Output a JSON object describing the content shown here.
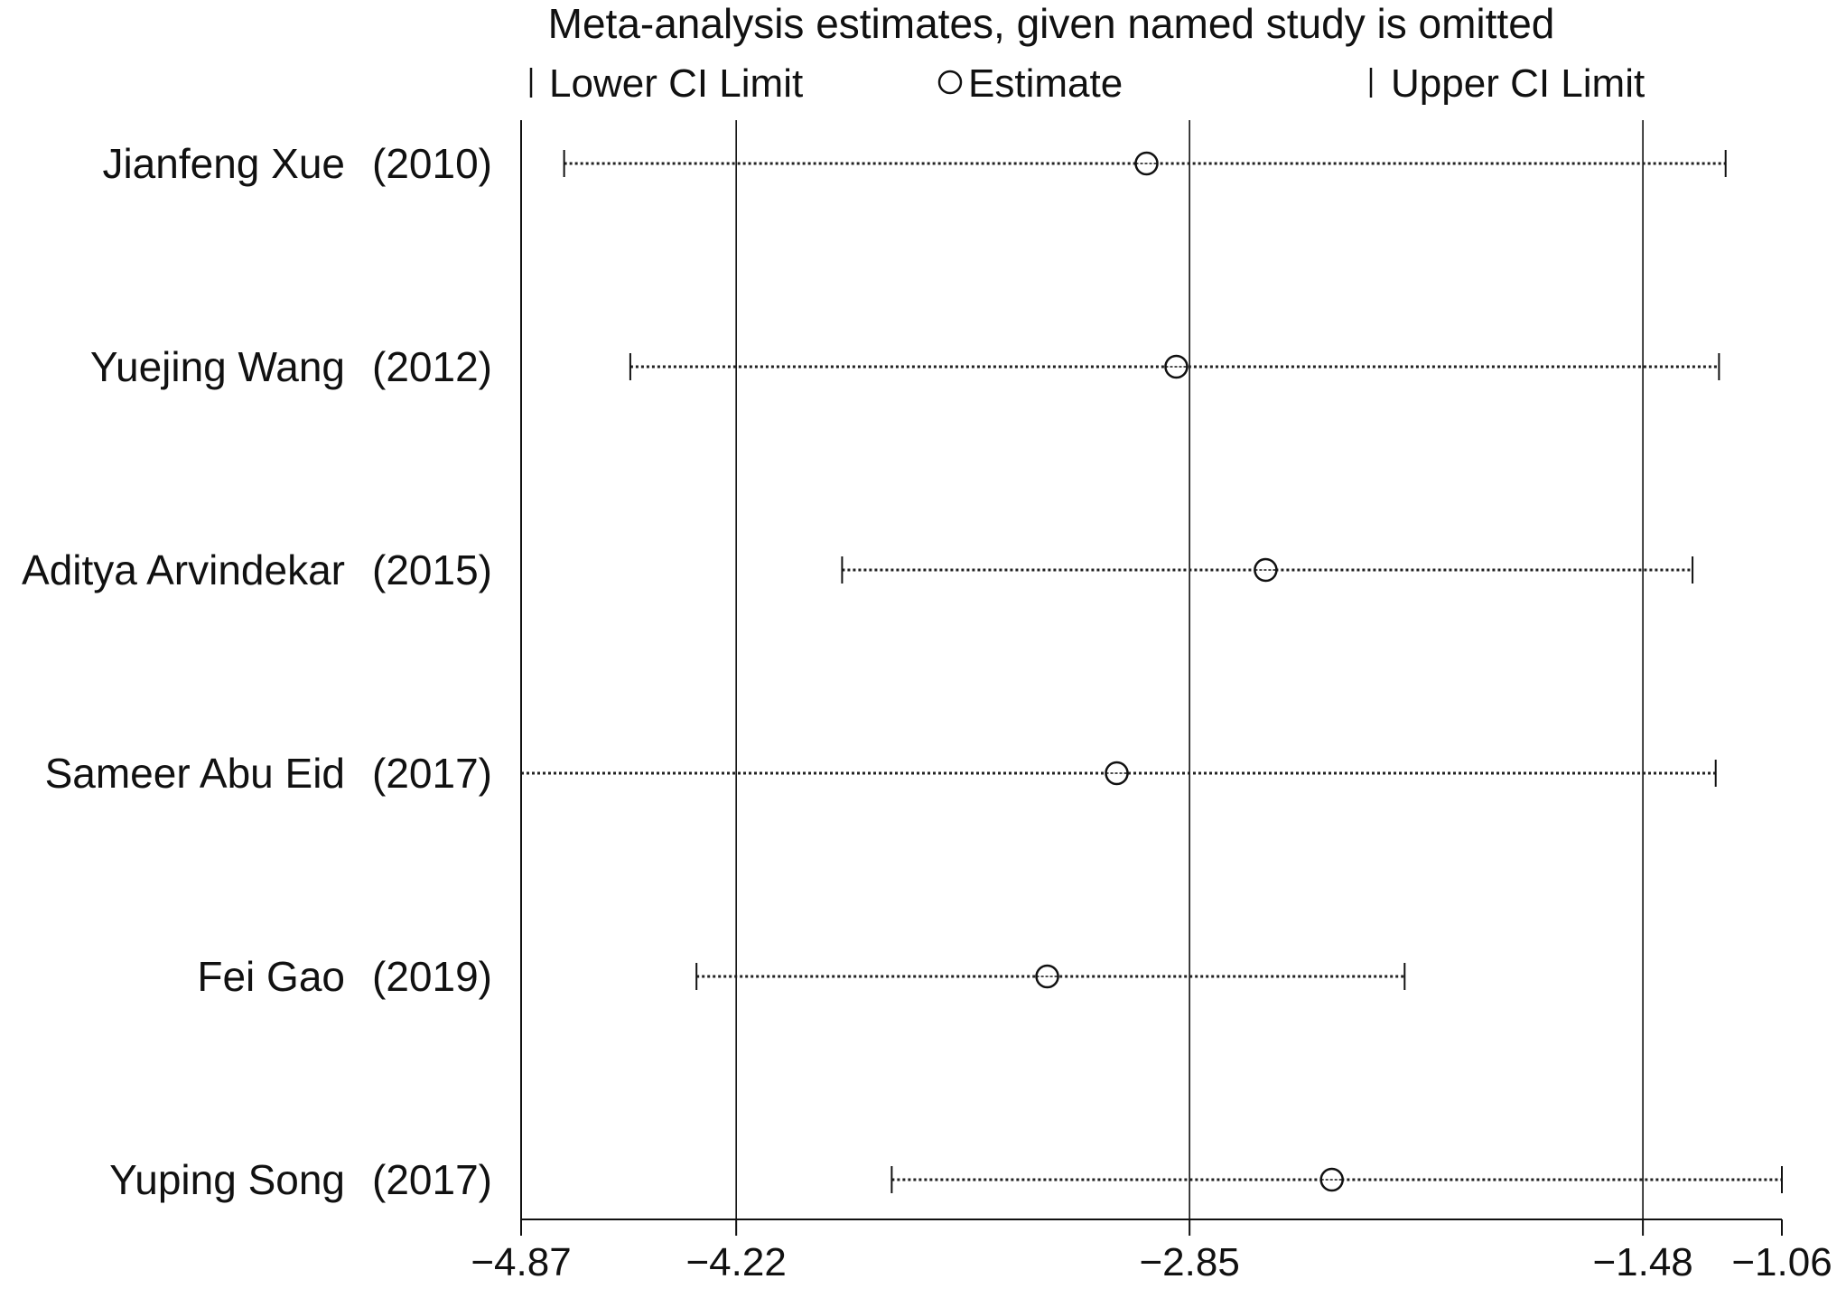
{
  "chart_data": {
    "type": "forest",
    "title": "Meta-analysis estimates, given named study is omitted",
    "legend": {
      "placement": "top",
      "items": [
        {
          "symbol": "|",
          "label": "Lower CI Limit"
        },
        {
          "symbol": "○",
          "label": "Estimate"
        },
        {
          "symbol": "|",
          "label": "Upper CI Limit"
        }
      ]
    },
    "xlim": [
      -4.87,
      -1.06
    ],
    "xticks": [
      -4.87,
      -4.22,
      -2.85,
      -1.48,
      -1.06
    ],
    "xtick_labels": [
      "−4.87",
      "−4.22",
      "−2.85",
      "−1.48",
      "−1.06"
    ],
    "reference_lines": [
      -4.22,
      -2.85,
      -1.48
    ],
    "studies": [
      {
        "name": "Jianfeng Xue",
        "year": "(2010)",
        "lower": -4.74,
        "estimate": -2.98,
        "upper": -1.23
      },
      {
        "name": "Yuejing Wang",
        "year": "(2012)",
        "lower": -4.54,
        "estimate": -2.89,
        "upper": -1.25
      },
      {
        "name": "Aditya Arvindekar",
        "year": "(2015)",
        "lower": -3.9,
        "estimate": -2.62,
        "upper": -1.33
      },
      {
        "name": "Sameer Abu Eid",
        "year": "(2017)",
        "lower": -4.87,
        "estimate": -3.07,
        "upper": -1.26
      },
      {
        "name": "Fei Gao",
        "year": "(2019)",
        "lower": -4.34,
        "estimate": -3.28,
        "upper": -2.2
      },
      {
        "name": "Yuping Song",
        "year": "(2017)",
        "lower": -3.75,
        "estimate": -2.42,
        "upper": -1.06
      }
    ]
  }
}
